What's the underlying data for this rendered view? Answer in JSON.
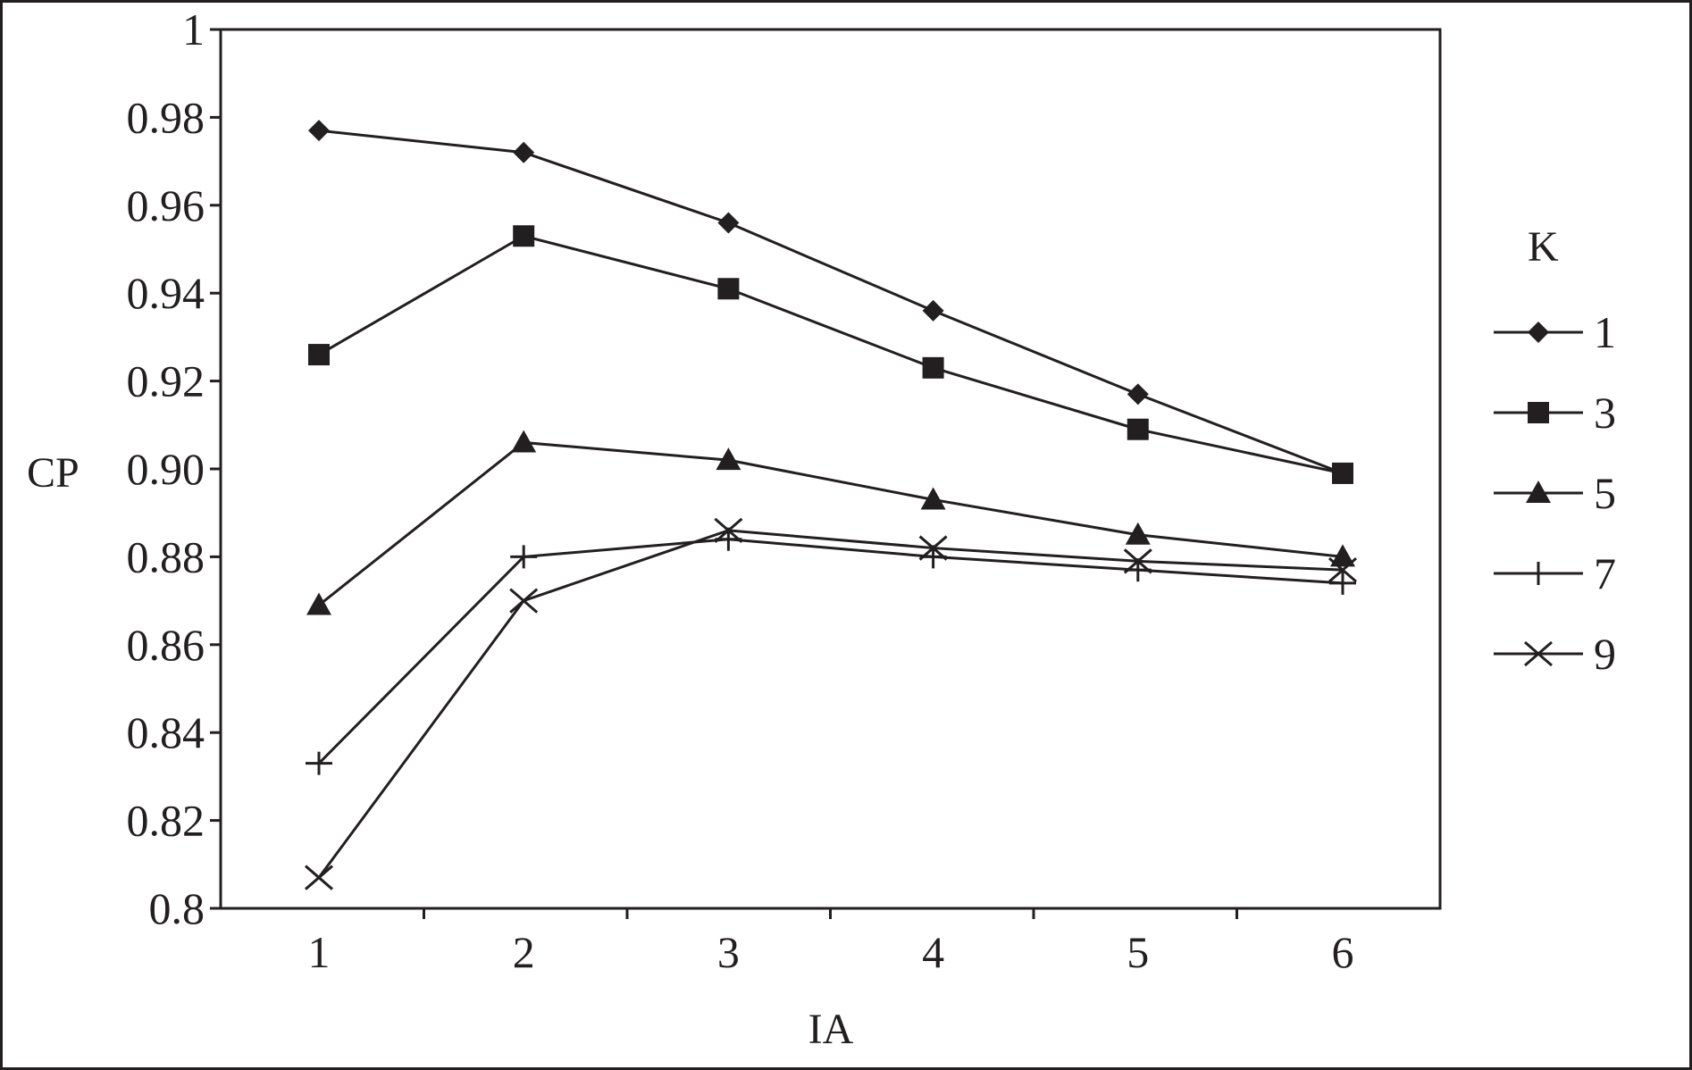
{
  "chart_data": {
    "type": "line",
    "title": "",
    "xlabel": "IA",
    "ylabel": "CP",
    "x": [
      1,
      2,
      3,
      4,
      5,
      6
    ],
    "x_ticks": [
      "1",
      "2",
      "3",
      "4",
      "5",
      "6"
    ],
    "ylim": [
      0.8,
      1.0
    ],
    "y_ticks": [
      "0.8",
      "0.82",
      "0.84",
      "0.86",
      "0.88",
      "0.90",
      "0.92",
      "0.94",
      "0.96",
      "0.98",
      "1"
    ],
    "grid": false,
    "legend_title": "K",
    "legend_position": "right",
    "color": "#231f20",
    "series": [
      {
        "name": "1",
        "marker": "diamond",
        "values": [
          0.977,
          0.972,
          0.956,
          0.936,
          0.917,
          0.899
        ]
      },
      {
        "name": "3",
        "marker": "square",
        "values": [
          0.926,
          0.953,
          0.941,
          0.923,
          0.909,
          0.899
        ]
      },
      {
        "name": "5",
        "marker": "triangle",
        "values": [
          0.869,
          0.906,
          0.902,
          0.893,
          0.885,
          0.88
        ]
      },
      {
        "name": "7",
        "marker": "plus",
        "values": [
          0.833,
          0.88,
          0.884,
          0.88,
          0.877,
          0.874
        ]
      },
      {
        "name": "9",
        "marker": "cross",
        "values": [
          0.807,
          0.87,
          0.886,
          0.882,
          0.879,
          0.877
        ]
      }
    ]
  }
}
